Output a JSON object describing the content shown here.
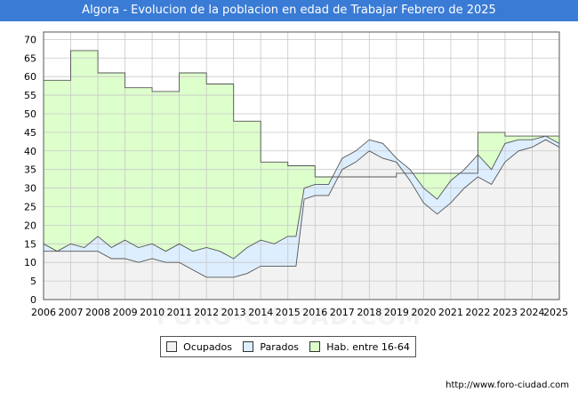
{
  "chart_data": {
    "type": "area",
    "title": "Algora - Evolucion de la poblacion en edad de Trabajar Febrero de 2025",
    "xlabel": "",
    "ylabel": "",
    "xlim": [
      2006,
      2025
    ],
    "ylim": [
      0,
      72
    ],
    "yticks": [
      0,
      5,
      10,
      15,
      20,
      25,
      30,
      35,
      40,
      45,
      50,
      55,
      60,
      65,
      70
    ],
    "xticks": [
      2006,
      2007,
      2008,
      2009,
      2010,
      2011,
      2012,
      2013,
      2014,
      2015,
      2016,
      2017,
      2018,
      2019,
      2020,
      2021,
      2022,
      2023,
      2024,
      2025
    ],
    "grid": true,
    "legend_position": "bottom",
    "colors": {
      "ocupados": "#f2f2f2",
      "parados": "#ddeeff",
      "hab": "#ddffcc",
      "line": "#555555",
      "title_bg": "#3a7bd5"
    },
    "series": [
      {
        "name": "Hab. entre 16-64",
        "step": true,
        "x": [
          2006,
          2007,
          2008,
          2009,
          2010,
          2011,
          2012,
          2013,
          2014,
          2015,
          2016,
          2017,
          2018,
          2019,
          2020,
          2021,
          2022,
          2023,
          2024,
          2025
        ],
        "values": [
          59,
          67,
          61,
          57,
          56,
          61,
          58,
          48,
          37,
          36,
          33,
          33,
          33,
          34,
          34,
          34,
          45,
          44,
          44,
          44
        ]
      },
      {
        "name": "Parados",
        "x": [
          2006,
          2006.5,
          2007,
          2007.5,
          2008,
          2008.5,
          2009,
          2009.5,
          2010,
          2010.5,
          2011,
          2011.5,
          2012,
          2012.5,
          2013,
          2013.5,
          2014,
          2014.5,
          2015,
          2015.3,
          2015.6,
          2016,
          2016.5,
          2017,
          2017.5,
          2018,
          2018.5,
          2019,
          2019.5,
          2020,
          2020.5,
          2021,
          2021.5,
          2022,
          2022.5,
          2023,
          2023.5,
          2024,
          2024.5,
          2025
        ],
        "values": [
          15,
          13,
          15,
          14,
          17,
          14,
          16,
          14,
          15,
          13,
          15,
          13,
          14,
          13,
          11,
          14,
          16,
          15,
          17,
          17,
          30,
          31,
          31,
          38,
          40,
          43,
          42,
          38,
          35,
          30,
          27,
          32,
          35,
          39,
          35,
          42,
          43,
          43,
          44,
          42
        ]
      },
      {
        "name": "Ocupados",
        "x": [
          2006,
          2006.5,
          2007,
          2007.5,
          2008,
          2008.5,
          2009,
          2009.5,
          2010,
          2010.5,
          2011,
          2011.5,
          2012,
          2012.5,
          2013,
          2013.5,
          2014,
          2014.5,
          2015,
          2015.3,
          2015.6,
          2016,
          2016.5,
          2017,
          2017.5,
          2018,
          2018.5,
          2019,
          2019.5,
          2020,
          2020.5,
          2021,
          2021.5,
          2022,
          2022.5,
          2023,
          2023.5,
          2024,
          2024.5,
          2025
        ],
        "values": [
          13,
          13,
          13,
          13,
          13,
          11,
          11,
          10,
          11,
          10,
          10,
          8,
          6,
          6,
          6,
          7,
          9,
          9,
          9,
          9,
          27,
          28,
          28,
          35,
          37,
          40,
          38,
          37,
          32,
          26,
          23,
          26,
          30,
          33,
          31,
          37,
          40,
          41,
          43,
          41
        ]
      }
    ],
    "legend": [
      "Ocupados",
      "Parados",
      "Hab. entre 16-64"
    ],
    "source": "http://www.foro-ciudad.com",
    "watermark": "FORO-CIUDAD.COM"
  }
}
